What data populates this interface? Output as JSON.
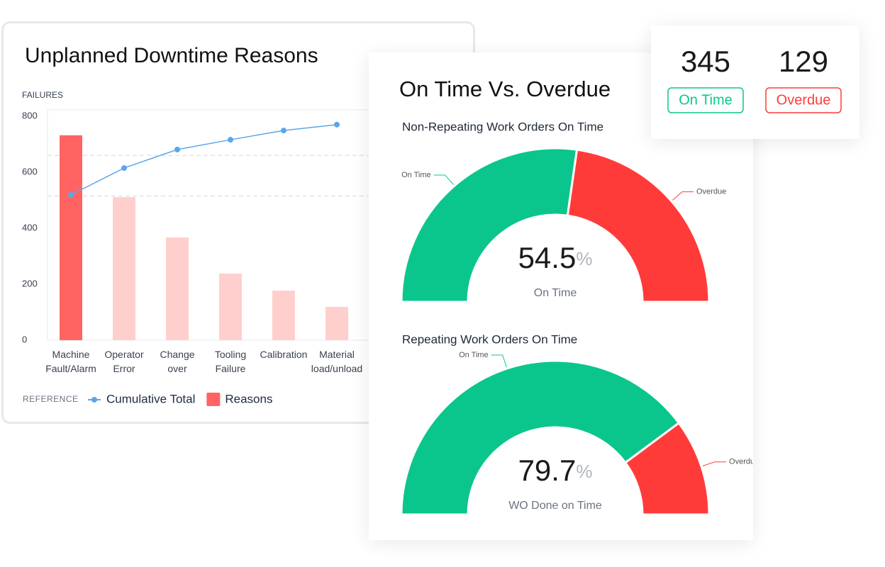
{
  "chart_data": [
    {
      "type": "bar",
      "title": "Unplanned Downtime Reasons",
      "y_label": "FAILURES",
      "categories": [
        "Machine Fault/Alarm",
        "Operator Error",
        "Change over",
        "Tooling Failure",
        "Calibration",
        "Material load/unload"
      ],
      "ylim": [
        0,
        800
      ],
      "yticks": [
        0,
        200,
        400,
        600,
        800
      ],
      "reference_lines": [
        660,
        515
      ],
      "legend_title": "REFERENCE",
      "series": [
        {
          "name": "Cumulative Total",
          "type": "line",
          "color": "#5ba6ea",
          "values": [
            519,
            615,
            681,
            716,
            749,
            770
          ]
        },
        {
          "name": "Reasons",
          "type": "bar",
          "color": "#ff6462",
          "muted_color": "#ffcfcd",
          "highlight": 0,
          "values": [
            732,
            511,
            367,
            238,
            177,
            119
          ]
        }
      ]
    },
    {
      "type": "gauge",
      "title": "Non-Repeating Work Orders On Time",
      "range": [
        0,
        100
      ],
      "value": 54.5,
      "unit": "%",
      "caption": "On Time",
      "segments": [
        {
          "name": "On Time",
          "color": "#0bc68c"
        },
        {
          "name": "Overdue",
          "color": "#ff3b3a"
        }
      ]
    },
    {
      "type": "gauge",
      "title": "Repeating Work Orders On Time",
      "range": [
        0,
        100
      ],
      "value": 79.7,
      "unit": "%",
      "caption": "WO Done on Time",
      "segments": [
        {
          "name": "On Time",
          "color": "#0bc68c"
        },
        {
          "name": "Overdue",
          "color": "#ff3b3a"
        }
      ]
    }
  ],
  "panel": {
    "title": "On Time Vs. Overdue"
  },
  "summary": [
    {
      "value": 345,
      "label": "On Time",
      "color": "#0bc68c"
    },
    {
      "value": 129,
      "label": "Overdue",
      "color": "#ff3b3a"
    }
  ]
}
